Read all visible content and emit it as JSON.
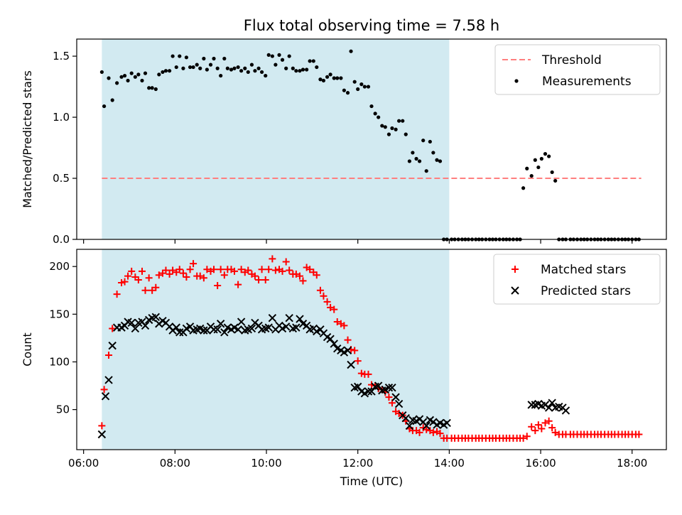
{
  "colors": {
    "observing_span": "#add8e6",
    "threshold": "#ff7f7f",
    "measurement": "#000000",
    "matched": "#ff0000",
    "predicted": "#000000"
  },
  "chart_data": [
    {
      "type": "scatter",
      "title": "Flux total observing time = 7.58 h",
      "xlabel": "",
      "ylabel": "Matched/Predicted stars",
      "xlim": [
        5.85,
        18.75
      ],
      "ylim": [
        0,
        1.64
      ],
      "yticks": [
        0.0,
        0.5,
        1.0,
        1.5
      ],
      "ytick_labels": [
        "0.0",
        "0.5",
        "1.0",
        "1.5"
      ],
      "xticks": [
        6,
        8,
        10,
        12,
        14,
        16,
        18
      ],
      "show_xtick_labels": false,
      "grid": false,
      "legend_position": "top-right",
      "observing_span": [
        6.4,
        14.0
      ],
      "threshold": {
        "name": "Threshold",
        "y": 0.5,
        "x": [
          6.4,
          18.2
        ]
      },
      "series": [
        {
          "name": "Measurements",
          "x": [
            6.4,
            6.45,
            6.55,
            6.63,
            6.73,
            6.83,
            6.9,
            6.97,
            7.05,
            7.13,
            7.2,
            7.28,
            7.35,
            7.43,
            7.5,
            7.58,
            7.65,
            7.73,
            7.8,
            7.88,
            7.95,
            8.03,
            8.1,
            8.18,
            8.25,
            8.33,
            8.4,
            8.48,
            8.55,
            8.63,
            8.7,
            8.78,
            8.85,
            8.93,
            9.0,
            9.08,
            9.15,
            9.23,
            9.3,
            9.38,
            9.45,
            9.53,
            9.6,
            9.68,
            9.75,
            9.83,
            9.9,
            9.98,
            10.05,
            10.13,
            10.2,
            10.28,
            10.35,
            10.43,
            10.5,
            10.58,
            10.65,
            10.73,
            10.8,
            10.88,
            10.95,
            11.03,
            11.1,
            11.18,
            11.25,
            11.33,
            11.4,
            11.48,
            11.55,
            11.63,
            11.7,
            11.78,
            11.85,
            11.93,
            12.0,
            12.08,
            12.15,
            12.23,
            12.3,
            12.38,
            12.45,
            12.53,
            12.6,
            12.68,
            12.75,
            12.83,
            12.9,
            12.98,
            13.05,
            13.13,
            13.2,
            13.28,
            13.35,
            13.43,
            13.5,
            13.58,
            13.65,
            13.73,
            13.8,
            13.88,
            13.95,
            14.05,
            14.12,
            14.2,
            14.28,
            14.35,
            14.42,
            14.5,
            14.58,
            14.65,
            14.72,
            14.8,
            14.88,
            14.95,
            15.02,
            15.1,
            15.18,
            15.25,
            15.32,
            15.4,
            15.48,
            15.55,
            15.62,
            15.7,
            15.8,
            15.88,
            15.95,
            16.02,
            16.1,
            16.18,
            16.25,
            16.32,
            16.4,
            16.48,
            16.55,
            16.65,
            16.72,
            16.8,
            16.88,
            16.95,
            17.02,
            17.1,
            17.18,
            17.25,
            17.32,
            17.4,
            17.48,
            17.55,
            17.62,
            17.7,
            17.78,
            17.85,
            17.92,
            18.0,
            18.08,
            18.15
          ],
          "y": [
            1.37,
            1.09,
            1.32,
            1.14,
            1.28,
            1.33,
            1.34,
            1.3,
            1.36,
            1.33,
            1.35,
            1.3,
            1.36,
            1.24,
            1.24,
            1.23,
            1.35,
            1.37,
            1.38,
            1.38,
            1.5,
            1.41,
            1.5,
            1.4,
            1.49,
            1.41,
            1.41,
            1.43,
            1.4,
            1.48,
            1.39,
            1.43,
            1.48,
            1.4,
            1.34,
            1.48,
            1.4,
            1.39,
            1.4,
            1.41,
            1.38,
            1.4,
            1.37,
            1.43,
            1.38,
            1.4,
            1.37,
            1.34,
            1.51,
            1.5,
            1.43,
            1.51,
            1.47,
            1.4,
            1.5,
            1.4,
            1.38,
            1.38,
            1.39,
            1.39,
            1.46,
            1.46,
            1.41,
            1.31,
            1.3,
            1.33,
            1.35,
            1.32,
            1.32,
            1.32,
            1.22,
            1.2,
            1.54,
            1.29,
            1.23,
            1.27,
            1.25,
            1.25,
            1.09,
            1.03,
            1.0,
            0.93,
            0.92,
            0.86,
            0.91,
            0.9,
            0.97,
            0.97,
            0.86,
            0.64,
            0.71,
            0.66,
            0.64,
            0.81,
            0.56,
            0.8,
            0.71,
            0.65,
            0.64,
            0.0,
            0.0,
            0.0,
            0.0,
            0.0,
            0.0,
            0.0,
            0.0,
            0.0,
            0.0,
            0.0,
            0.0,
            0.0,
            0.0,
            0.0,
            0.0,
            0.0,
            0.0,
            0.0,
            0.0,
            0.0,
            0.0,
            0.0,
            0.42,
            0.58,
            0.52,
            0.65,
            0.59,
            0.66,
            0.7,
            0.68,
            0.55,
            0.48,
            0.0,
            0.0,
            0.0,
            0.0,
            0.0,
            0.0,
            0.0,
            0.0,
            0.0,
            0.0,
            0.0,
            0.0,
            0.0,
            0.0,
            0.0,
            0.0,
            0.0,
            0.0,
            0.0,
            0.0,
            0.0,
            0.0,
            0.0,
            0.0
          ]
        }
      ]
    },
    {
      "type": "scatter",
      "title": "",
      "xlabel": "Time (UTC)",
      "ylabel": "Count",
      "xlim": [
        5.85,
        18.75
      ],
      "ylim": [
        8,
        218
      ],
      "yticks": [
        50,
        100,
        150,
        200
      ],
      "ytick_labels": [
        "50",
        "100",
        "150",
        "200"
      ],
      "xticks": [
        6,
        8,
        10,
        12,
        14,
        16,
        18
      ],
      "xtick_labels": [
        "06:00",
        "08:00",
        "10:00",
        "12:00",
        "14:00",
        "16:00",
        "18:00"
      ],
      "grid": false,
      "legend_position": "top-right",
      "observing_span": [
        6.4,
        14.0
      ],
      "series": [
        {
          "name": "Matched stars",
          "marker": "plus",
          "x": [
            6.4,
            6.45,
            6.55,
            6.63,
            6.73,
            6.83,
            6.9,
            6.97,
            7.05,
            7.13,
            7.2,
            7.28,
            7.35,
            7.43,
            7.5,
            7.58,
            7.65,
            7.73,
            7.8,
            7.88,
            7.95,
            8.03,
            8.1,
            8.18,
            8.25,
            8.33,
            8.4,
            8.48,
            8.55,
            8.63,
            8.7,
            8.78,
            8.85,
            8.93,
            9.0,
            9.08,
            9.15,
            9.23,
            9.3,
            9.38,
            9.45,
            9.53,
            9.6,
            9.68,
            9.75,
            9.83,
            9.9,
            9.98,
            10.05,
            10.13,
            10.2,
            10.28,
            10.35,
            10.43,
            10.5,
            10.58,
            10.65,
            10.73,
            10.8,
            10.88,
            10.95,
            11.03,
            11.1,
            11.18,
            11.25,
            11.33,
            11.4,
            11.48,
            11.55,
            11.63,
            11.7,
            11.78,
            11.85,
            11.93,
            12.0,
            12.08,
            12.15,
            12.23,
            12.3,
            12.38,
            12.45,
            12.53,
            12.6,
            12.68,
            12.75,
            12.83,
            12.9,
            12.98,
            13.05,
            13.13,
            13.2,
            13.28,
            13.35,
            13.43,
            13.5,
            13.58,
            13.65,
            13.73,
            13.8,
            13.88,
            13.95,
            14.05,
            14.12,
            14.2,
            14.28,
            14.35,
            14.42,
            14.5,
            14.58,
            14.65,
            14.72,
            14.8,
            14.88,
            14.95,
            15.02,
            15.1,
            15.18,
            15.25,
            15.32,
            15.4,
            15.48,
            15.55,
            15.62,
            15.7,
            15.8,
            15.88,
            15.95,
            16.02,
            16.1,
            16.18,
            16.25,
            16.32,
            16.4,
            16.48,
            16.55,
            16.65,
            16.72,
            16.8,
            16.88,
            16.95,
            17.02,
            17.1,
            17.18,
            17.25,
            17.32,
            17.4,
            17.48,
            17.55,
            17.62,
            17.7,
            17.78,
            17.85,
            17.92,
            18.0,
            18.08,
            18.15
          ],
          "y": [
            33,
            71,
            107,
            135,
            171,
            183,
            184,
            190,
            195,
            189,
            186,
            195,
            175,
            188,
            175,
            178,
            191,
            193,
            196,
            192,
            196,
            194,
            197,
            193,
            189,
            197,
            203,
            190,
            190,
            188,
            197,
            195,
            197,
            180,
            197,
            191,
            197,
            197,
            195,
            181,
            197,
            194,
            196,
            192,
            190,
            186,
            197,
            186,
            197,
            208,
            196,
            197,
            195,
            205,
            196,
            192,
            192,
            190,
            185,
            199,
            197,
            194,
            191,
            175,
            169,
            163,
            157,
            155,
            142,
            140,
            138,
            123,
            113,
            112,
            101,
            88,
            87,
            87,
            76,
            75,
            72,
            71,
            68,
            63,
            57,
            48,
            46,
            44,
            38,
            30,
            28,
            28,
            26,
            31,
            29,
            28,
            26,
            27,
            25,
            20,
            20,
            20,
            20,
            20,
            20,
            20,
            20,
            20,
            20,
            20,
            20,
            20,
            20,
            20,
            20,
            20,
            20,
            20,
            20,
            20,
            20,
            20,
            20,
            22,
            32,
            28,
            34,
            30,
            36,
            38,
            31,
            26,
            24,
            24,
            24,
            24,
            24,
            24,
            24,
            24,
            24,
            24,
            24,
            24,
            24,
            24,
            24,
            24,
            24,
            24,
            24,
            24,
            24,
            24,
            24,
            24
          ]
        },
        {
          "name": "Predicted stars",
          "marker": "x",
          "x": [
            6.4,
            6.48,
            6.55,
            6.63,
            6.73,
            6.83,
            6.9,
            6.97,
            7.05,
            7.13,
            7.2,
            7.28,
            7.35,
            7.43,
            7.5,
            7.58,
            7.65,
            7.73,
            7.8,
            7.88,
            7.95,
            8.03,
            8.1,
            8.18,
            8.25,
            8.33,
            8.4,
            8.48,
            8.55,
            8.63,
            8.7,
            8.78,
            8.85,
            8.93,
            9.0,
            9.08,
            9.15,
            9.23,
            9.3,
            9.38,
            9.45,
            9.53,
            9.6,
            9.68,
            9.75,
            9.83,
            9.9,
            9.98,
            10.05,
            10.13,
            10.2,
            10.28,
            10.35,
            10.43,
            10.5,
            10.58,
            10.65,
            10.73,
            10.8,
            10.88,
            10.95,
            11.03,
            11.1,
            11.18,
            11.25,
            11.33,
            11.4,
            11.48,
            11.55,
            11.63,
            11.7,
            11.78,
            11.85,
            11.93,
            12.0,
            12.08,
            12.15,
            12.23,
            12.3,
            12.38,
            12.45,
            12.53,
            12.6,
            12.68,
            12.75,
            12.83,
            12.9,
            12.98,
            13.05,
            13.13,
            13.2,
            13.28,
            13.35,
            13.43,
            13.5,
            13.58,
            13.65,
            13.73,
            13.8,
            13.88,
            13.95,
            15.8,
            15.88,
            15.95,
            16.02,
            16.1,
            16.18,
            16.25,
            16.32,
            16.4,
            16.48,
            16.55
          ],
          "y": [
            24,
            64,
            81,
            117,
            136,
            136,
            138,
            142,
            141,
            135,
            141,
            142,
            138,
            144,
            146,
            147,
            140,
            143,
            141,
            137,
            133,
            136,
            131,
            131,
            135,
            137,
            133,
            134,
            135,
            133,
            133,
            137,
            134,
            134,
            140,
            131,
            136,
            134,
            136,
            134,
            142,
            133,
            134,
            135,
            141,
            138,
            134,
            135,
            136,
            146,
            134,
            138,
            135,
            137,
            146,
            135,
            136,
            145,
            140,
            138,
            134,
            135,
            132,
            134,
            130,
            126,
            124,
            119,
            114,
            112,
            110,
            112,
            97,
            73,
            74,
            69,
            67,
            69,
            69,
            74,
            75,
            70,
            71,
            73,
            73,
            63,
            56,
            44,
            41,
            33,
            39,
            38,
            40,
            37,
            33,
            39,
            37,
            34,
            36,
            34,
            36,
            55,
            55,
            56,
            54,
            55,
            52,
            57,
            52,
            53,
            52,
            49
          ]
        }
      ]
    }
  ]
}
